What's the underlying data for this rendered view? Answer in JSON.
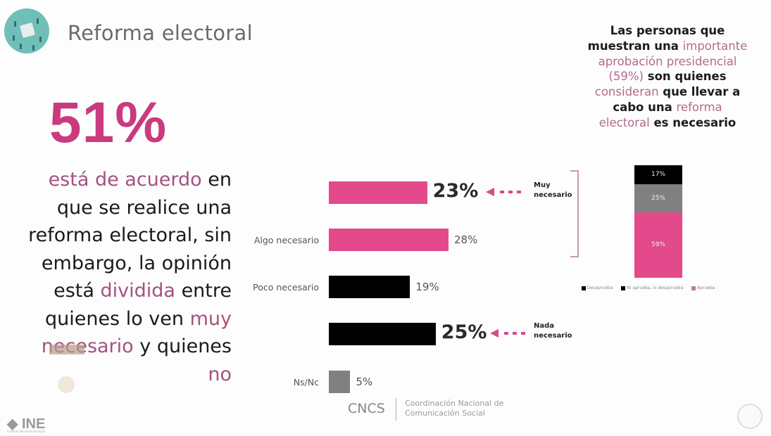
{
  "header": {
    "title": "Reforma electoral",
    "logo_icon": "ballot-box-icon"
  },
  "left_panel": {
    "big_percent": "51%",
    "lines": [
      [
        {
          "t": "está de acuerdo",
          "hl": true
        },
        {
          "t": " en",
          "hl": false
        }
      ],
      [
        {
          "t": "que se realice una",
          "hl": false
        }
      ],
      [
        {
          "t": "reforma electoral, sin",
          "hl": false
        }
      ],
      [
        {
          "t": "embargo, la opinión",
          "hl": false
        }
      ],
      [
        {
          "t": "está ",
          "hl": false
        },
        {
          "t": "dividida",
          "hl": true
        },
        {
          "t": " entre",
          "hl": false
        }
      ],
      [
        {
          "t": "quienes lo ven ",
          "hl": false
        },
        {
          "t": "muy",
          "hl": true
        }
      ],
      [
        {
          "t": "necesario",
          "hl": true
        },
        {
          "t": " y quienes",
          "hl": false
        }
      ],
      [
        {
          "t": "no",
          "hl": true
        }
      ]
    ]
  },
  "side_note": {
    "lines": [
      [
        {
          "t": "Las personas que",
          "hl": false
        }
      ],
      [
        {
          "t": "muestran una ",
          "hl": false
        },
        {
          "t": "importante",
          "hl": true
        }
      ],
      [
        {
          "t": "aprobación presidencial",
          "hl": true
        }
      ],
      [
        {
          "t": "(59%)",
          "hl": true
        },
        {
          "t": " son quienes",
          "hl": false
        }
      ],
      [
        {
          "t": "consideran",
          "hl": true
        },
        {
          "t": " que llevar a",
          "hl": false
        }
      ],
      [
        {
          "t": "cabo una ",
          "hl": false
        },
        {
          "t": "reforma",
          "hl": true
        }
      ],
      [
        {
          "t": "electoral",
          "hl": true
        },
        {
          "t": " es necesario",
          "hl": false
        }
      ]
    ]
  },
  "annotations": {
    "muy": [
      "Muy",
      "necesario"
    ],
    "nada": [
      "Nada",
      "necesario"
    ]
  },
  "footer": {
    "ine": "INE",
    "ine_sub": "Instituto Nacional Electoral",
    "cncs": "CNCS",
    "cncs_sub": [
      "Coordinación Nacional de",
      "Comunicación Social"
    ]
  },
  "colors": {
    "pink": "#e24a8b",
    "highlight_text": "#a4537e",
    "big_number": "#c93a7e",
    "black": "#000000",
    "gray": "#808080"
  },
  "chart_data": [
    {
      "type": "bar",
      "orientation": "horizontal",
      "title": "",
      "categories": [
        "Muy necesario",
        "Algo necesario",
        "Poco necesario",
        "Nada necesario",
        "Ns/Nc"
      ],
      "shown_labels": [
        "",
        "Algo necesario",
        "Poco necesario",
        "",
        "Ns/Nc"
      ],
      "values": [
        23,
        28,
        19,
        25,
        5
      ],
      "value_labels": [
        "23%",
        "28%",
        "19%",
        "25%",
        "5%"
      ],
      "bar_colors": [
        "#e24a8b",
        "#e24a8b",
        "#000000",
        "#000000",
        "#808080"
      ],
      "emphasized": [
        true,
        false,
        false,
        true,
        false
      ],
      "xlabel": "",
      "ylabel": "",
      "grid": false
    },
    {
      "type": "bar",
      "stacked": true,
      "title": "",
      "categories": [
        ""
      ],
      "series": [
        {
          "name": "Desaprueba",
          "values": [
            17
          ],
          "label": "17%",
          "color": "#000000"
        },
        {
          "name": "Ni aprueba, ni desaprueba",
          "values": [
            25
          ],
          "label": "25%",
          "color": "#808080"
        },
        {
          "name": "Aprueba",
          "values": [
            59
          ],
          "label": "59%",
          "color": "#e24a8b"
        }
      ],
      "legend_position": "bottom"
    }
  ]
}
